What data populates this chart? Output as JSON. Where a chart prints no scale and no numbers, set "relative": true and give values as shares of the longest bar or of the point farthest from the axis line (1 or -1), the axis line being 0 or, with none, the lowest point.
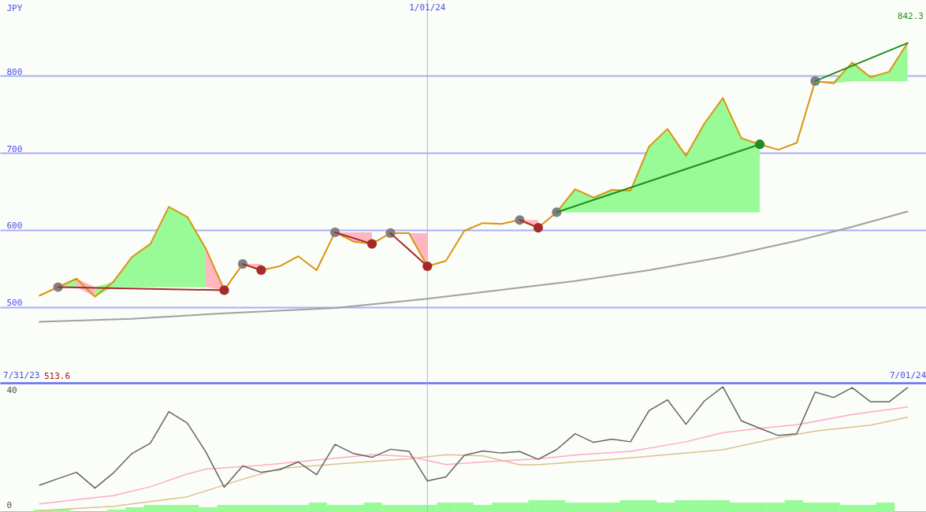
{
  "chart_data": [
    {
      "type": "line",
      "ylabel": "JPY",
      "x": [
        "2023-08-07",
        "2023-08-14",
        "2023-08-21",
        "2023-08-28",
        "2023-09-04",
        "2023-09-11",
        "2023-09-18",
        "2023-09-25",
        "2023-10-02",
        "2023-10-09",
        "2023-10-16",
        "2023-10-23",
        "2023-10-30",
        "2023-11-06",
        "2023-11-13",
        "2023-11-20",
        "2023-11-27",
        "2023-12-04",
        "2023-12-11",
        "2023-12-18",
        "2023-12-25",
        "2024-01-01",
        "2024-01-08",
        "2024-01-15",
        "2024-01-22",
        "2024-01-29",
        "2024-02-05",
        "2024-02-12",
        "2024-02-19",
        "2024-02-26",
        "2024-03-04",
        "2024-03-11",
        "2024-03-18",
        "2024-03-25",
        "2024-04-01",
        "2024-04-08",
        "2024-04-15",
        "2024-04-22",
        "2024-04-29",
        "2024-05-06",
        "2024-05-13",
        "2024-05-20",
        "2024-05-27",
        "2024-06-03",
        "2024-06-10",
        "2024-06-17",
        "2024-06-24",
        "2024-07-01"
      ],
      "xlim": [
        "2023-07-23",
        "2024-07-08"
      ],
      "xticks": [
        {
          "value": "2023-07-31",
          "label": "7/31/23"
        },
        {
          "value": "2024-07-01",
          "label": "7/01/24"
        }
      ],
      "ylim": [
        402,
        898
      ],
      "yticks": [
        500,
        600,
        700,
        800
      ],
      "grid": "y",
      "ref_lines": [
        {
          "axis": "x",
          "value": "2024-01-01",
          "label": "1/01/24",
          "color": "#a8b0f8"
        }
      ],
      "annotations": [
        "513.6",
        "842.3"
      ],
      "series": [
        {
          "color": "#98fb98",
          "x": [
            "2023-08-14",
            "2023-08-21"
          ],
          "values": [
            null,
            null
          ],
          "upper": [
            526,
            537
          ],
          "lower": [
            526,
            526
          ]
        },
        {
          "color": "#ffb6c1",
          "x": [
            "2023-08-21",
            "2023-08-28"
          ],
          "values": [
            null,
            null
          ],
          "upper": [
            537,
            526
          ],
          "lower": [
            526,
            513.6
          ]
        },
        {
          "color": "#98fb98",
          "x": [
            "2023-08-28",
            "2023-09-04",
            "2023-09-11",
            "2023-09-18",
            "2023-09-25",
            "2023-10-02",
            "2023-10-09"
          ],
          "values": [
            null,
            null,
            null,
            null,
            null,
            null,
            null
          ],
          "upper": [
            526,
            533,
            565,
            582,
            630,
            617,
            576
          ],
          "lower": [
            513.6,
            526,
            526,
            526,
            526,
            526,
            526
          ]
        },
        {
          "color": "#ffb6c1",
          "x": [
            "2023-10-09",
            "2023-10-16"
          ],
          "values": [
            null,
            null
          ],
          "upper": [
            576,
            526
          ],
          "lower": [
            526,
            522
          ]
        },
        {
          "color": "#ffb6c1",
          "x": [
            "2023-10-23",
            "2023-10-30"
          ],
          "values": [
            null,
            null
          ],
          "upper": [
            556,
            556
          ],
          "lower": [
            556,
            548
          ]
        },
        {
          "color": "#ffb6c1",
          "x": [
            "2023-11-27",
            "2023-12-04",
            "2023-12-11"
          ],
          "values": [
            null,
            null,
            null
          ],
          "upper": [
            597,
            597,
            597
          ],
          "lower": [
            597,
            585,
            582
          ]
        },
        {
          "color": "#ffb6c1",
          "x": [
            "2023-12-18",
            "2023-12-25",
            "2024-01-01"
          ],
          "values": [
            null,
            null,
            null
          ],
          "upper": [
            596,
            596,
            596
          ],
          "lower": [
            596,
            596,
            553
          ]
        },
        {
          "color": "#ffb6c1",
          "x": [
            "2024-02-05",
            "2024-02-12"
          ],
          "values": [
            null,
            null
          ],
          "upper": [
            613,
            613
          ],
          "lower": [
            613,
            603
          ]
        },
        {
          "color": "#98fb98",
          "x": [
            "2024-02-19",
            "2024-02-26",
            "2024-03-04",
            "2024-03-11",
            "2024-03-18",
            "2024-03-25",
            "2024-04-01",
            "2024-04-08",
            "2024-04-15",
            "2024-04-22",
            "2024-04-29",
            "2024-05-06"
          ],
          "values": [
            null,
            null,
            null,
            null,
            null,
            null,
            null,
            null,
            null,
            null,
            null,
            null
          ],
          "upper": [
            623,
            653,
            642,
            652,
            651,
            708,
            731,
            696,
            738,
            771,
            719,
            711
          ],
          "lower": [
            623,
            623,
            623,
            623,
            623,
            623,
            623,
            623,
            623,
            623,
            623,
            623
          ]
        },
        {
          "color": "#ffb6c1",
          "x": [
            "2024-05-27",
            "2024-06-03"
          ],
          "values": [
            null,
            null
          ],
          "upper": [
            793,
            793
          ],
          "lower": [
            793,
            790
          ]
        },
        {
          "color": "#98fb98",
          "x": [
            "2024-06-03",
            "2024-06-10",
            "2024-06-17",
            "2024-06-24",
            "2024-07-01"
          ],
          "values": [
            null,
            null,
            null,
            null,
            null
          ],
          "upper": [
            793,
            817,
            798,
            805,
            842.3
          ],
          "lower": [
            790,
            793,
            793,
            793,
            793
          ]
        },
        {
          "color": "#a0a0a0",
          "x": [
            "2023-08-07",
            "2023-09-11",
            "2023-10-16",
            "2023-11-27",
            "2024-01-01",
            "2024-02-26",
            "2024-03-25",
            "2024-04-22",
            "2024-05-20",
            "2024-06-10",
            "2024-07-01"
          ],
          "values": [
            481,
            485,
            492,
            499,
            511,
            534,
            548,
            565,
            586,
            604,
            624
          ]
        },
        {
          "color": "#da9410",
          "values": [
            515,
            526,
            537,
            513.6,
            533,
            565,
            582,
            630,
            617,
            576,
            522,
            556,
            548,
            553,
            566,
            548,
            597,
            585,
            582,
            596,
            596,
            553,
            560,
            599,
            609,
            608,
            613,
            603,
            623,
            653,
            642,
            652,
            651,
            708,
            731,
            696,
            738,
            771,
            719,
            711,
            704,
            713,
            793,
            790,
            817,
            798,
            805,
            842.3
          ]
        },
        {
          "type": "scatter",
          "color": "#808080",
          "x": [
            "2023-08-14",
            "2023-10-23",
            "2023-11-27",
            "2023-12-18",
            "2024-02-05",
            "2024-02-19",
            "2024-05-27"
          ],
          "values": [
            526,
            556,
            597,
            596,
            613,
            623,
            793
          ]
        },
        {
          "type": "scatter",
          "color": "#a52a2a",
          "x": [
            "2023-10-16",
            "2023-10-30",
            "2023-12-11",
            "2024-01-01",
            "2024-02-12"
          ],
          "values": [
            522,
            548,
            582,
            553,
            603
          ]
        },
        {
          "type": "scatter",
          "color": "#228b22",
          "x": [
            "2024-05-06"
          ],
          "values": [
            711
          ]
        },
        {
          "color": "#a52a2a",
          "x": [
            "2023-08-14",
            "2023-10-16"
          ],
          "values": [
            526,
            522
          ]
        },
        {
          "color": "#a52a2a",
          "x": [
            "2023-10-23",
            "2023-10-30"
          ],
          "values": [
            556,
            548
          ]
        },
        {
          "color": "#a52a2a",
          "x": [
            "2023-11-27",
            "2023-12-11"
          ],
          "values": [
            597,
            582
          ]
        },
        {
          "color": "#a52a2a",
          "x": [
            "2023-12-18",
            "2024-01-01"
          ],
          "values": [
            596,
            553
          ]
        },
        {
          "color": "#a52a2a",
          "x": [
            "2024-02-05",
            "2024-02-12"
          ],
          "values": [
            613,
            603
          ]
        },
        {
          "color": "#228b22",
          "x": [
            "2024-02-19",
            "2024-05-06"
          ],
          "values": [
            623,
            711
          ]
        },
        {
          "color": "#228b22",
          "x": [
            "2024-05-27",
            "2024-07-01"
          ],
          "values": [
            793,
            842.3
          ]
        }
      ]
    },
    {
      "type": "line",
      "x": [
        "2023-08-07",
        "2023-08-14",
        "2023-08-21",
        "2023-08-28",
        "2023-09-04",
        "2023-09-11",
        "2023-09-18",
        "2023-09-25",
        "2023-10-02",
        "2023-10-09",
        "2023-10-16",
        "2023-10-23",
        "2023-10-30",
        "2023-11-06",
        "2023-11-13",
        "2023-11-20",
        "2023-11-27",
        "2023-12-04",
        "2023-12-11",
        "2023-12-18",
        "2023-12-25",
        "2024-01-01",
        "2024-01-08",
        "2024-01-15",
        "2024-01-22",
        "2024-01-29",
        "2024-02-05",
        "2024-02-12",
        "2024-02-19",
        "2024-02-26",
        "2024-03-04",
        "2024-03-11",
        "2024-03-18",
        "2024-03-25",
        "2024-04-01",
        "2024-04-08",
        "2024-04-15",
        "2024-04-22",
        "2024-04-29",
        "2024-05-06",
        "2024-05-13",
        "2024-05-20",
        "2024-05-27",
        "2024-06-03",
        "2024-06-10",
        "2024-06-17",
        "2024-06-24",
        "2024-07-01"
      ],
      "xlim": [
        "2023-07-23",
        "2024-07-08"
      ],
      "ylim": [
        -2.2,
        42.7
      ],
      "yticks": [
        0,
        40
      ],
      "tick_labels": "y",
      "ref_lines": [
        {
          "axis": "x",
          "value": "2024-01-01",
          "color": "#a8b0f8"
        }
      ],
      "series": [
        {
          "color": "#dcc08c",
          "x": [
            "2023-08-07",
            "2023-09-04",
            "2023-10-02",
            "2023-10-23",
            "2023-11-06",
            "2023-11-27",
            "2023-12-25",
            "2024-01-08",
            "2024-01-22",
            "2024-02-05",
            "2024-02-12",
            "2024-03-18",
            "2024-04-22",
            "2024-05-13",
            "2024-05-27",
            "2024-06-17",
            "2024-07-01"
          ],
          "values": [
            -1.7,
            -0.2,
            3.1,
            9.2,
            12.9,
            14.4,
            16.3,
            17.7,
            17.3,
            14.2,
            14.2,
            16.6,
            19.4,
            23.6,
            25.9,
            28,
            30.7
          ]
        },
        {
          "color": "#ffaac6",
          "x": [
            "2023-08-07",
            "2023-08-21",
            "2023-09-04",
            "2023-09-18",
            "2023-10-02",
            "2023-10-09",
            "2023-10-30",
            "2023-11-20",
            "2023-12-11",
            "2023-12-25",
            "2024-01-08",
            "2024-01-22",
            "2024-02-12",
            "2024-02-26",
            "2024-03-18",
            "2024-04-08",
            "2024-04-22",
            "2024-05-06",
            "2024-05-20",
            "2024-06-10",
            "2024-07-01"
          ],
          "values": [
            0.6,
            2.1,
            3.5,
            6.6,
            11,
            12.7,
            14,
            15.9,
            17.7,
            17.1,
            14.3,
            15.2,
            16.3,
            17.6,
            18.9,
            22.2,
            25.4,
            26.9,
            28.1,
            31.7,
            34.3
          ]
        },
        {
          "color": "#646464",
          "values": [
            7.1,
            9.4,
            11.6,
            6.1,
            11.4,
            18.1,
            21.7,
            32.7,
            28.7,
            18.7,
            6.4,
            13.8,
            11.6,
            12.5,
            15.2,
            10.8,
            21.3,
            18.1,
            16.8,
            19.6,
            18.9,
            8.6,
            10,
            17.5,
            19,
            18.3,
            18.8,
            16.1,
            19.5,
            25,
            22,
            23.1,
            22.2,
            33,
            36.8,
            28.3,
            36.4,
            41.3,
            29.5,
            26.9,
            24.4,
            25,
            39.5,
            37.6,
            41,
            36.1,
            36.1,
            41
          ]
        }
      ]
    },
    {
      "type": "bar",
      "relative": true,
      "x": [
        "2023-08-07",
        "2023-08-14",
        "2023-08-21",
        "2023-08-28",
        "2023-09-04",
        "2023-09-11",
        "2023-09-18",
        "2023-09-25",
        "2023-10-02",
        "2023-10-09",
        "2023-10-16",
        "2023-10-23",
        "2023-10-30",
        "2023-11-06",
        "2023-11-13",
        "2023-11-20",
        "2023-11-27",
        "2023-12-04",
        "2023-12-11",
        "2023-12-18",
        "2023-12-25",
        "2024-01-01",
        "2024-01-08",
        "2024-01-15",
        "2024-01-22",
        "2024-01-29",
        "2024-02-05",
        "2024-02-12",
        "2024-02-19",
        "2024-02-26",
        "2024-03-04",
        "2024-03-11",
        "2024-03-18",
        "2024-03-25",
        "2024-04-01",
        "2024-04-08",
        "2024-04-15",
        "2024-04-22",
        "2024-04-29",
        "2024-05-06",
        "2024-05-13",
        "2024-05-20",
        "2024-05-27",
        "2024-06-03",
        "2024-06-10",
        "2024-06-17",
        "2024-06-24"
      ],
      "xlim": [
        "2023-07-23",
        "2024-07-08"
      ],
      "tick_labels": false,
      "color": "#98fb98",
      "values": [
        0.2,
        0.2,
        null,
        null,
        0.2,
        0.4,
        0.6,
        0.6,
        0.6,
        0.4,
        0.6,
        0.6,
        0.6,
        0.6,
        0.6,
        0.8,
        0.6,
        0.6,
        0.8,
        0.6,
        0.6,
        0.6,
        0.8,
        0.8,
        0.6,
        0.8,
        0.8,
        1,
        1,
        0.8,
        0.8,
        0.8,
        1,
        1,
        0.8,
        1,
        1,
        1,
        0.8,
        0.8,
        0.8,
        1,
        0.8,
        0.8,
        0.6,
        0.6,
        0.8
      ]
    }
  ]
}
